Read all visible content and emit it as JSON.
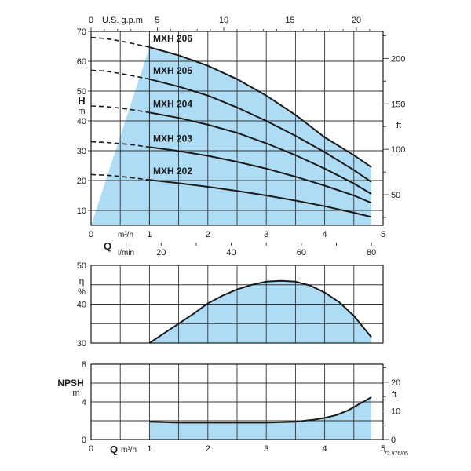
{
  "colors": {
    "fill": "#aedcf4",
    "line": "#1a1a1a",
    "grid": "#333333"
  },
  "chart_data": [
    {
      "type": "line",
      "id": "head",
      "xlabel": "Q",
      "x_unit_flow": "m³/h",
      "x_unit_flow2": "l/min",
      "ylabel": "H",
      "yunit": "m",
      "y2label": "ft",
      "top_axis_label": "U.S. g.p.m.",
      "xlim": [
        0,
        5
      ],
      "ylim": [
        5,
        70
      ],
      "x_ticks": [
        "0",
        "1",
        "2",
        "3",
        "4",
        "5"
      ],
      "y_ticks": [
        "10",
        "20",
        "30",
        "40",
        "50",
        "60",
        "70"
      ],
      "y2_ticks": [
        "50",
        "100",
        "150",
        "200"
      ],
      "y2_tick_values": [
        50,
        100,
        150,
        200
      ],
      "top_ticks": [
        "0",
        "5",
        "10",
        "15",
        "20"
      ],
      "top_tick_values": [
        0,
        5,
        10,
        15,
        20
      ],
      "lmin_ticks": [
        "20",
        "40",
        "60",
        "80"
      ],
      "lmin_tick_values": [
        20,
        40,
        60,
        80
      ],
      "operating_range": [
        1,
        4.8
      ],
      "series": [
        {
          "name": "MXH 206",
          "x": [
            0,
            0.25,
            0.5,
            0.75,
            1.0,
            1.5,
            2.0,
            2.5,
            3.0,
            3.5,
            4.0,
            4.5,
            4.8
          ],
          "y": [
            68,
            67.6,
            66.8,
            65.8,
            64.7,
            62.0,
            58.5,
            54.0,
            48.5,
            42.0,
            34.5,
            28.5,
            24.5
          ]
        },
        {
          "name": "MXH 205",
          "x": [
            0,
            0.25,
            0.5,
            0.75,
            1.0,
            1.5,
            2.0,
            2.5,
            3.0,
            3.5,
            4.0,
            4.5,
            4.8
          ],
          "y": [
            57,
            56.7,
            55.9,
            55.0,
            54.0,
            51.5,
            48.5,
            44.5,
            40.0,
            35.0,
            29.5,
            23.5,
            19.5
          ]
        },
        {
          "name": "MXH 204",
          "x": [
            0,
            0.25,
            0.5,
            0.75,
            1.0,
            1.5,
            2.0,
            2.5,
            3.0,
            3.5,
            4.0,
            4.5,
            4.8
          ],
          "y": [
            45,
            44.8,
            44.3,
            43.6,
            42.8,
            41.0,
            38.7,
            36.0,
            32.5,
            28.5,
            24.0,
            19.0,
            15.5
          ]
        },
        {
          "name": "MXH 203",
          "x": [
            0,
            0.25,
            0.5,
            0.75,
            1.0,
            1.5,
            2.0,
            2.5,
            3.0,
            3.5,
            4.0,
            4.5,
            4.8
          ],
          "y": [
            33,
            32.8,
            32.4,
            31.9,
            31.2,
            29.9,
            28.3,
            26.3,
            24.0,
            21.3,
            18.3,
            15.0,
            12.5
          ]
        },
        {
          "name": "MXH 202",
          "x": [
            0,
            0.25,
            0.5,
            0.75,
            1.0,
            1.5,
            2.0,
            2.5,
            3.0,
            3.5,
            4.0,
            4.5,
            4.8
          ],
          "y": [
            22,
            21.8,
            21.4,
            20.8,
            20.2,
            19.1,
            17.9,
            16.5,
            15.0,
            13.3,
            11.4,
            9.2,
            7.8
          ]
        }
      ]
    },
    {
      "type": "area",
      "id": "efficiency",
      "ylabel": "η",
      "yunit": "%",
      "xlim": [
        0,
        5
      ],
      "ylim": [
        30,
        50
      ],
      "y_ticks": [
        "30",
        "40",
        "50"
      ],
      "series": [
        {
          "name": "",
          "x": [
            1.0,
            1.25,
            1.5,
            1.75,
            2.0,
            2.25,
            2.5,
            2.75,
            3.0,
            3.25,
            3.5,
            3.75,
            4.0,
            4.25,
            4.5,
            4.8
          ],
          "y": [
            30.0,
            32.5,
            35.0,
            37.5,
            40.2,
            42.2,
            43.8,
            45.0,
            45.8,
            46.0,
            45.8,
            44.8,
            43.0,
            40.5,
            37.0,
            31.5
          ]
        }
      ]
    },
    {
      "type": "area",
      "id": "npsh",
      "ylabel": "NPSH",
      "yunit": "m",
      "y2label": "ft",
      "xlabel": "Q",
      "xunit": "m³/h",
      "xlim": [
        0,
        5
      ],
      "ylim": [
        0,
        8
      ],
      "x_ticks": [
        "0",
        "1",
        "2",
        "3",
        "4",
        "5"
      ],
      "y_ticks": [
        "0",
        "4",
        "8"
      ],
      "y_tick_values": [
        0,
        4,
        8
      ],
      "y2_ticks": [
        "0",
        "10",
        "20"
      ],
      "y2_tick_values": [
        0,
        10,
        20
      ],
      "series": [
        {
          "name": "",
          "x": [
            1.0,
            1.5,
            2.0,
            2.5,
            3.0,
            3.5,
            3.8,
            4.0,
            4.2,
            4.4,
            4.6,
            4.8
          ],
          "y": [
            1.9,
            1.8,
            1.8,
            1.8,
            1.8,
            1.9,
            2.1,
            2.3,
            2.6,
            3.1,
            3.8,
            4.5
          ]
        }
      ]
    }
  ],
  "footer_code": "72.976/05"
}
